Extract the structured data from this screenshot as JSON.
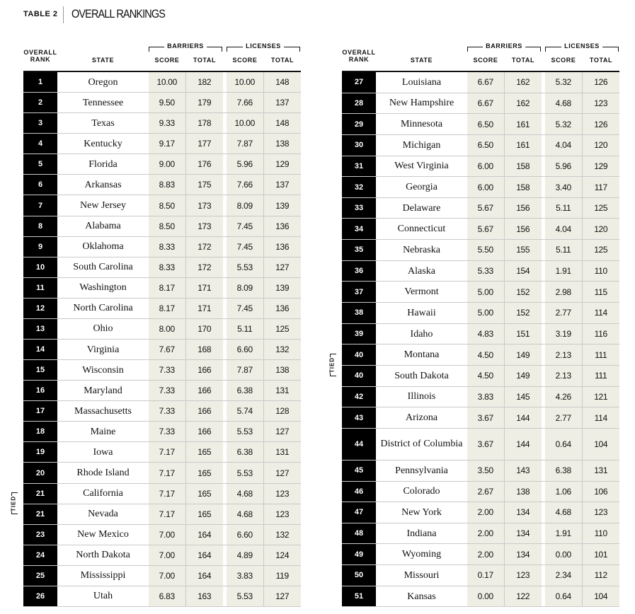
{
  "header": {
    "label": "TABLE 2",
    "title": "OVERALL RANKINGS"
  },
  "columns": {
    "rank": "OVERALL RANK",
    "state": "STATE",
    "barriers": "BARRIERS",
    "licenses": "LICENSES",
    "score": "SCORE",
    "total": "TOTAL"
  },
  "tied_label": "TIED",
  "colors": {
    "rank_bg": "#000000",
    "number_bg": "#efeee4"
  },
  "left": [
    [
      "1",
      "Oregon",
      "10.00",
      "182",
      "10.00",
      "148"
    ],
    [
      "2",
      "Tennessee",
      "9.50",
      "179",
      "7.66",
      "137"
    ],
    [
      "3",
      "Texas",
      "9.33",
      "178",
      "10.00",
      "148"
    ],
    [
      "4",
      "Kentucky",
      "9.17",
      "177",
      "7.87",
      "138"
    ],
    [
      "5",
      "Florida",
      "9.00",
      "176",
      "5.96",
      "129"
    ],
    [
      "6",
      "Arkansas",
      "8.83",
      "175",
      "7.66",
      "137"
    ],
    [
      "7",
      "New Jersey",
      "8.50",
      "173",
      "8.09",
      "139"
    ],
    [
      "8",
      "Alabama",
      "8.50",
      "173",
      "7.45",
      "136"
    ],
    [
      "9",
      "Oklahoma",
      "8.33",
      "172",
      "7.45",
      "136"
    ],
    [
      "10",
      "South Carolina",
      "8.33",
      "172",
      "5.53",
      "127"
    ],
    [
      "11",
      "Washington",
      "8.17",
      "171",
      "8.09",
      "139"
    ],
    [
      "12",
      "North Carolina",
      "8.17",
      "171",
      "7.45",
      "136"
    ],
    [
      "13",
      "Ohio",
      "8.00",
      "170",
      "5.11",
      "125"
    ],
    [
      "14",
      "Virginia",
      "7.67",
      "168",
      "6.60",
      "132"
    ],
    [
      "15",
      "Wisconsin",
      "7.33",
      "166",
      "7.87",
      "138"
    ],
    [
      "16",
      "Maryland",
      "7.33",
      "166",
      "6.38",
      "131"
    ],
    [
      "17",
      "Massachusetts",
      "7.33",
      "166",
      "5.74",
      "128"
    ],
    [
      "18",
      "Maine",
      "7.33",
      "166",
      "5.53",
      "127"
    ],
    [
      "19",
      "Iowa",
      "7.17",
      "165",
      "6.38",
      "131"
    ],
    [
      "20",
      "Rhode Island",
      "7.17",
      "165",
      "5.53",
      "127"
    ],
    [
      "21",
      "California",
      "7.17",
      "165",
      "4.68",
      "123"
    ],
    [
      "21",
      "Nevada",
      "7.17",
      "165",
      "4.68",
      "123"
    ],
    [
      "23",
      "New Mexico",
      "7.00",
      "164",
      "6.60",
      "132"
    ],
    [
      "24",
      "North Dakota",
      "7.00",
      "164",
      "4.89",
      "124"
    ],
    [
      "25",
      "Mississippi",
      "7.00",
      "164",
      "3.83",
      "119"
    ],
    [
      "26",
      "Utah",
      "6.83",
      "163",
      "5.53",
      "127"
    ]
  ],
  "right": [
    [
      "27",
      "Louisiana",
      "6.67",
      "162",
      "5.32",
      "126"
    ],
    [
      "28",
      "New Hampshire",
      "6.67",
      "162",
      "4.68",
      "123"
    ],
    [
      "29",
      "Minnesota",
      "6.50",
      "161",
      "5.32",
      "126"
    ],
    [
      "30",
      "Michigan",
      "6.50",
      "161",
      "4.04",
      "120"
    ],
    [
      "31",
      "West Virginia",
      "6.00",
      "158",
      "5.96",
      "129"
    ],
    [
      "32",
      "Georgia",
      "6.00",
      "158",
      "3.40",
      "117"
    ],
    [
      "33",
      "Delaware",
      "5.67",
      "156",
      "5.11",
      "125"
    ],
    [
      "34",
      "Connecticut",
      "5.67",
      "156",
      "4.04",
      "120"
    ],
    [
      "35",
      "Nebraska",
      "5.50",
      "155",
      "5.11",
      "125"
    ],
    [
      "36",
      "Alaska",
      "5.33",
      "154",
      "1.91",
      "110"
    ],
    [
      "37",
      "Vermont",
      "5.00",
      "152",
      "2.98",
      "115"
    ],
    [
      "38",
      "Hawaii",
      "5.00",
      "152",
      "2.77",
      "114"
    ],
    [
      "39",
      "Idaho",
      "4.83",
      "151",
      "3.19",
      "116"
    ],
    [
      "40",
      "Montana",
      "4.50",
      "149",
      "2.13",
      "111"
    ],
    [
      "40",
      "South Dakota",
      "4.50",
      "149",
      "2.13",
      "111"
    ],
    [
      "42",
      "Illinois",
      "3.83",
      "145",
      "4.26",
      "121"
    ],
    [
      "43",
      "Arizona",
      "3.67",
      "144",
      "2.77",
      "114"
    ],
    [
      "44",
      "District of Columbia",
      "3.67",
      "144",
      "0.64",
      "104"
    ],
    [
      "45",
      "Pennsylvania",
      "3.50",
      "143",
      "6.38",
      "131"
    ],
    [
      "46",
      "Colorado",
      "2.67",
      "138",
      "1.06",
      "106"
    ],
    [
      "47",
      "New York",
      "2.00",
      "134",
      "4.68",
      "123"
    ],
    [
      "48",
      "Indiana",
      "2.00",
      "134",
      "1.91",
      "110"
    ],
    [
      "49",
      "Wyoming",
      "2.00",
      "134",
      "0.00",
      "101"
    ],
    [
      "50",
      "Missouri",
      "0.17",
      "123",
      "2.34",
      "112"
    ],
    [
      "51",
      "Kansas",
      "0.00",
      "122",
      "0.64",
      "104"
    ]
  ]
}
